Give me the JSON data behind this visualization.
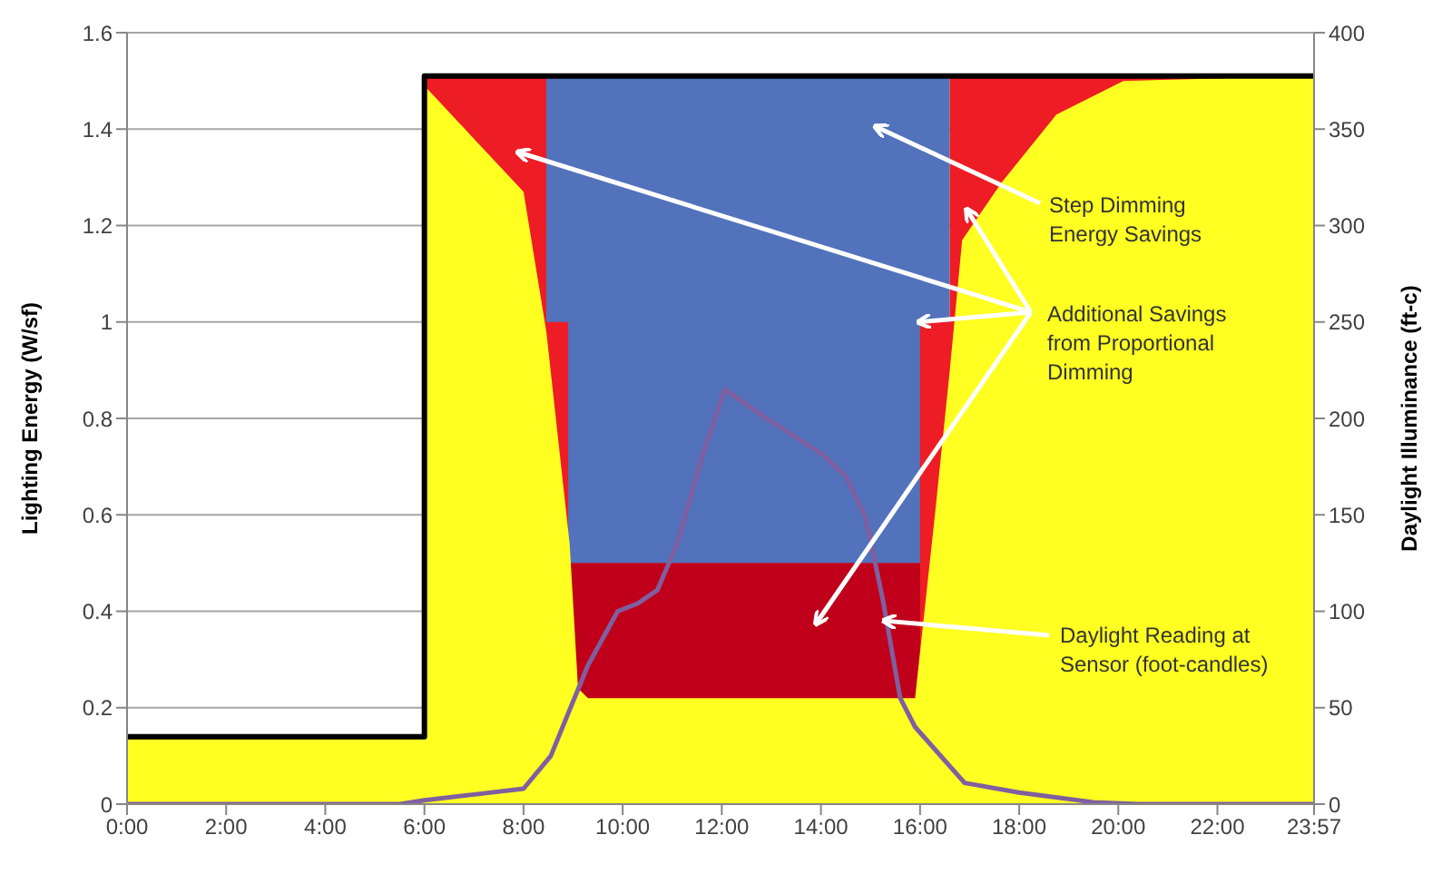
{
  "chart_data": {
    "type": "area",
    "ylabel": "Lighting Energy (W/sf)",
    "y2label": "Daylight Illuminance (ft-c)",
    "xlim": [
      0,
      23.95
    ],
    "xticks": [
      {
        "value": 0,
        "label": "0:00"
      },
      {
        "value": 2,
        "label": "2:00"
      },
      {
        "value": 4,
        "label": "4:00"
      },
      {
        "value": 6,
        "label": "6:00"
      },
      {
        "value": 8,
        "label": "8:00"
      },
      {
        "value": 10,
        "label": "10:00"
      },
      {
        "value": 12,
        "label": "12:00"
      },
      {
        "value": 14,
        "label": "14:00"
      },
      {
        "value": 16,
        "label": "16:00"
      },
      {
        "value": 18,
        "label": "18:00"
      },
      {
        "value": 20,
        "label": "20:00"
      },
      {
        "value": 22,
        "label": "22:00"
      },
      {
        "value": 23.95,
        "label": "23:57"
      }
    ],
    "ylim": [
      0,
      1.6
    ],
    "yticks": [
      0,
      0.2,
      0.4,
      0.6,
      0.8,
      1,
      1.2,
      1.4,
      1.6
    ],
    "y2lim": [
      0,
      400
    ],
    "y2ticks": [
      0,
      50,
      100,
      150,
      200,
      250,
      300,
      350,
      400
    ],
    "grid": "y",
    "legend": false,
    "annotations": [
      "Step Dimming Energy Savings",
      {
        "text": "Additional Savings from Proportional Dimming",
        "x": 16.0,
        "y": 1.0
      },
      {
        "text": "Daylight Reading at Sensor (foot-candles)",
        "x": 15.3,
        "y": 0.38
      }
    ],
    "series": [
      {
        "color": "#5272bc",
        "x": [
          8.46,
          16.6
        ],
        "values": [
          1.51,
          1.51
        ]
      },
      {
        "color": "#ee1c25",
        "x": [
          6,
          8.46,
          8.46,
          8.9,
          8.9,
          16.0,
          16.0,
          16.6,
          16.6,
          23.95
        ],
        "values": [
          1.51,
          1.51,
          1.0,
          1.0,
          0.5,
          0.5,
          1.0,
          1.0,
          1.51,
          1.51
        ]
      },
      {
        "color": "#c0001a",
        "x": [
          8.9,
          16.0
        ],
        "values": [
          0.5,
          0.5
        ]
      },
      {
        "color": "#ffff22",
        "x": [
          0,
          6,
          6,
          7,
          8,
          8.46,
          8.93,
          9.1,
          9.3,
          15.8,
          15.9,
          16.3,
          16.6,
          16.85,
          17.65,
          18.75,
          20.1,
          23.95
        ],
        "values": [
          0.14,
          0.14,
          1.49,
          1.38,
          1.27,
          0.98,
          0.54,
          0.24,
          0.22,
          0.22,
          0.22,
          0.6,
          0.9,
          1.17,
          1.29,
          1.43,
          1.5,
          1.51
        ]
      },
      {
        "type": "line",
        "color": "#000000",
        "x": [
          0,
          6,
          6,
          23.95
        ],
        "values": [
          0.14,
          0.14,
          1.51,
          1.51
        ]
      },
      {
        "type": "line",
        "axis": "y2",
        "color": "#7f5fa0",
        "x": [
          0,
          5.5,
          6,
          7,
          8,
          8.55,
          8.9,
          9.3,
          9.9,
          10.3,
          10.7,
          11.1,
          11.6,
          12.06,
          12.9,
          14.0,
          14.5,
          14.9,
          15.25,
          15.6,
          15.9,
          16.9,
          18,
          19.5,
          20.4,
          23.95
        ],
        "values": [
          0,
          0,
          2,
          5,
          8,
          25,
          47,
          72,
          100,
          104,
          111,
          135,
          180,
          215,
          200,
          182,
          170,
          149,
          106,
          55,
          40,
          11,
          6,
          1,
          0,
          0
        ]
      }
    ]
  }
}
